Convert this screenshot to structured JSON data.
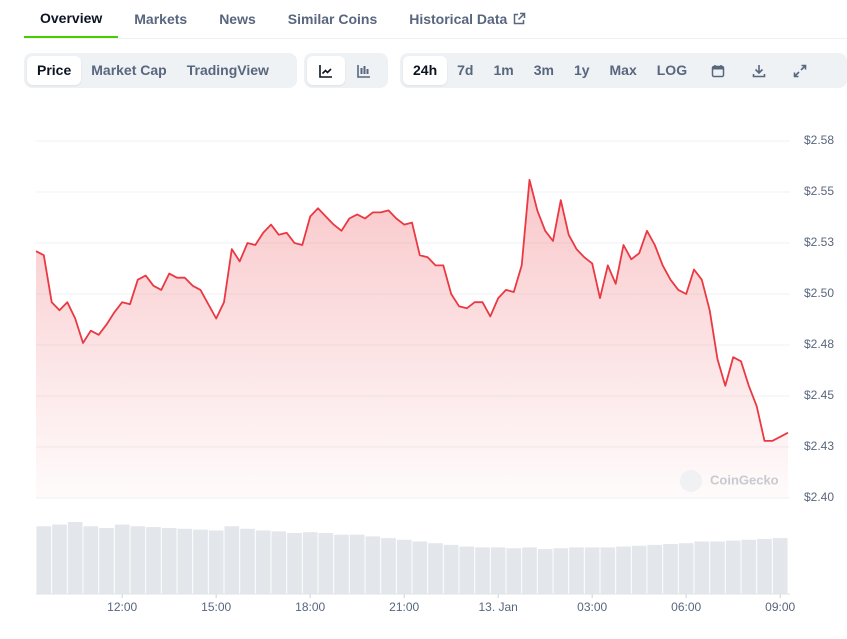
{
  "tabs": [
    {
      "label": "Overview",
      "active": true
    },
    {
      "label": "Markets",
      "active": false
    },
    {
      "label": "News",
      "active": false
    },
    {
      "label": "Similar Coins",
      "active": false
    },
    {
      "label": "Historical Data",
      "active": false
    }
  ],
  "view_buttons": [
    {
      "label": "Price",
      "active": true
    },
    {
      "label": "Market Cap",
      "active": false
    },
    {
      "label": "TradingView",
      "active": false
    }
  ],
  "range_buttons": [
    {
      "label": "24h",
      "active": true
    },
    {
      "label": "7d",
      "active": false
    },
    {
      "label": "1m",
      "active": false
    },
    {
      "label": "3m",
      "active": false
    },
    {
      "label": "1y",
      "active": false
    },
    {
      "label": "Max",
      "active": false
    },
    {
      "label": "LOG",
      "active": false
    }
  ],
  "chart_data": {
    "type": "line",
    "watermark": "CoinGecko",
    "color": "#ea3943",
    "grid": true,
    "x": [
      9.25,
      9.5,
      9.75,
      10,
      10.25,
      10.5,
      10.75,
      11,
      11.25,
      11.5,
      11.75,
      12,
      12.25,
      12.5,
      12.75,
      13,
      13.25,
      13.5,
      13.75,
      14,
      14.25,
      14.5,
      14.75,
      15,
      15.25,
      15.5,
      15.75,
      16,
      16.25,
      16.5,
      16.75,
      17,
      17.25,
      17.5,
      17.75,
      18,
      18.25,
      18.5,
      18.75,
      19,
      19.25,
      19.5,
      19.75,
      20,
      20.25,
      20.5,
      20.75,
      21,
      21.25,
      21.5,
      21.75,
      22,
      22.25,
      22.5,
      22.75,
      23,
      23.25,
      23.5,
      23.75,
      24,
      24.25,
      24.5,
      24.75,
      25,
      25.25,
      25.5,
      25.75,
      26,
      26.25,
      26.5,
      26.75,
      27,
      27.25,
      27.5,
      27.75,
      28,
      28.25,
      28.5,
      28.75,
      29,
      29.25,
      29.5,
      29.75,
      30,
      30.25,
      30.5,
      30.75,
      31,
      31.25,
      31.5,
      31.75,
      32,
      32.25,
      32.5,
      32.75,
      33,
      33.25
    ],
    "values": [
      2.521,
      2.519,
      2.496,
      2.492,
      2.496,
      2.488,
      2.476,
      2.482,
      2.48,
      2.485,
      2.491,
      2.496,
      2.495,
      2.507,
      2.509,
      2.504,
      2.502,
      2.51,
      2.508,
      2.508,
      2.504,
      2.502,
      2.495,
      2.488,
      2.496,
      2.522,
      2.516,
      2.525,
      2.524,
      2.53,
      2.534,
      2.529,
      2.53,
      2.525,
      2.524,
      2.538,
      2.542,
      2.538,
      2.534,
      2.531,
      2.537,
      2.539,
      2.537,
      2.54,
      2.54,
      2.541,
      2.537,
      2.534,
      2.535,
      2.519,
      2.518,
      2.514,
      2.514,
      2.5,
      2.494,
      2.493,
      2.496,
      2.496,
      2.489,
      2.498,
      2.502,
      2.501,
      2.514,
      2.556,
      2.541,
      2.531,
      2.526,
      2.546,
      2.529,
      2.522,
      2.518,
      2.515,
      2.498,
      2.514,
      2.505,
      2.524,
      2.517,
      2.52,
      2.531,
      2.524,
      2.514,
      2.507,
      2.502,
      2.5,
      2.512,
      2.507,
      2.492,
      2.468,
      2.455,
      2.469,
      2.467,
      2.455,
      2.445,
      2.428,
      2.428,
      2.43,
      2.432
    ],
    "xlim": [
      9.25,
      33.25
    ],
    "xticks": [
      {
        "value": 12,
        "label": "12:00"
      },
      {
        "value": 15,
        "label": "15:00"
      },
      {
        "value": 18,
        "label": "18:00"
      },
      {
        "value": 21,
        "label": "21:00"
      },
      {
        "value": 24,
        "label": "13. Jan"
      },
      {
        "value": 27,
        "label": "03:00"
      },
      {
        "value": 30,
        "label": "06:00"
      },
      {
        "value": 33,
        "label": "09:00"
      }
    ],
    "ylim": [
      2.4,
      2.575
    ],
    "yticks": [
      {
        "value": 2.4,
        "label": "$2.40"
      },
      {
        "value": 2.425,
        "label": "$2.43"
      },
      {
        "value": 2.45,
        "label": "$2.45"
      },
      {
        "value": 2.475,
        "label": "$2.48"
      },
      {
        "value": 2.5,
        "label": "$2.50"
      },
      {
        "value": 2.525,
        "label": "$2.53"
      },
      {
        "value": 2.55,
        "label": "$2.55"
      },
      {
        "value": 2.575,
        "label": "$2.58"
      }
    ],
    "volume": {
      "color": "#e3e6ea",
      "values": [
        80,
        82,
        85,
        80,
        78,
        82,
        80,
        79,
        78,
        77,
        76,
        75,
        80,
        77,
        75,
        74,
        72,
        73,
        72,
        70,
        70,
        68,
        66,
        64,
        62,
        60,
        58,
        56,
        55,
        55,
        54,
        55,
        53,
        54,
        55,
        55,
        55,
        56,
        57,
        58,
        59,
        60,
        62,
        62,
        63,
        64,
        65,
        66
      ]
    }
  }
}
